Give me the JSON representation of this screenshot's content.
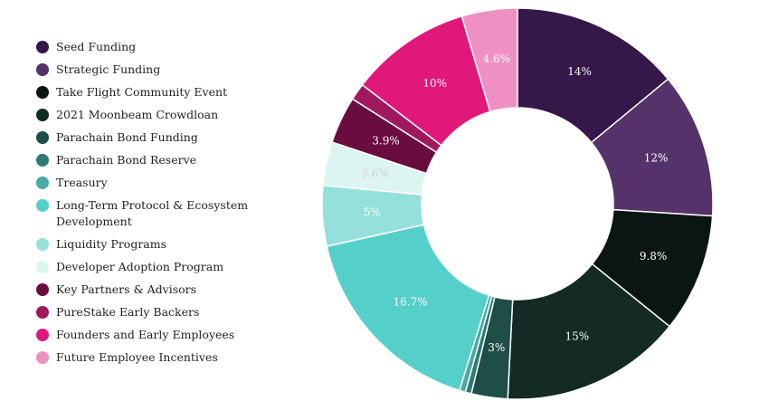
{
  "chart_data": {
    "type": "pie",
    "variant": "donut",
    "legend_position": "left",
    "categories": [
      "Seed Funding",
      "Strategic Funding",
      "Take Flight Community Event",
      "2021 Moonbeam Crowdloan",
      "Parachain Bond Funding",
      "Parachain Bond Reserve",
      "Treasury",
      "Long-Term Protocol & Ecosystem Development",
      "Liquidity Programs",
      "Developer Adoption Program",
      "Key Partners & Advisors",
      "PureStake Early Backers",
      "Founders and Early Employees",
      "Future Employee Incentives"
    ],
    "values": [
      14,
      12,
      9.8,
      15,
      3,
      0.5,
      0.5,
      16.7,
      5,
      3.6,
      3.9,
      1.4,
      10,
      4.6
    ],
    "labels": [
      "14%",
      "12%",
      "9.8%",
      "15%",
      "3%",
      "",
      "",
      "16.7%",
      "5%",
      "3.6%",
      "3.9%",
      "",
      "10%",
      "4.6%"
    ],
    "colors": [
      "#35174a",
      "#553269",
      "#0b1614",
      "#132a25",
      "#1f4d47",
      "#2f7a74",
      "#4aa8a5",
      "#55cfca",
      "#96e0dc",
      "#dcf5f3",
      "#6b0c3e",
      "#a0195f",
      "#e0187a",
      "#ee91c2"
    ],
    "label_colors": [
      "#ffffff",
      "#ffffff",
      "#ffffff",
      "#ffffff",
      "#ffffff",
      "#ffffff",
      "#ffffff",
      "#ffffff",
      "#ffffff",
      "#cfcfcf",
      "#ffffff",
      "#ffffff",
      "#ffffff",
      "#ffffff"
    ]
  }
}
